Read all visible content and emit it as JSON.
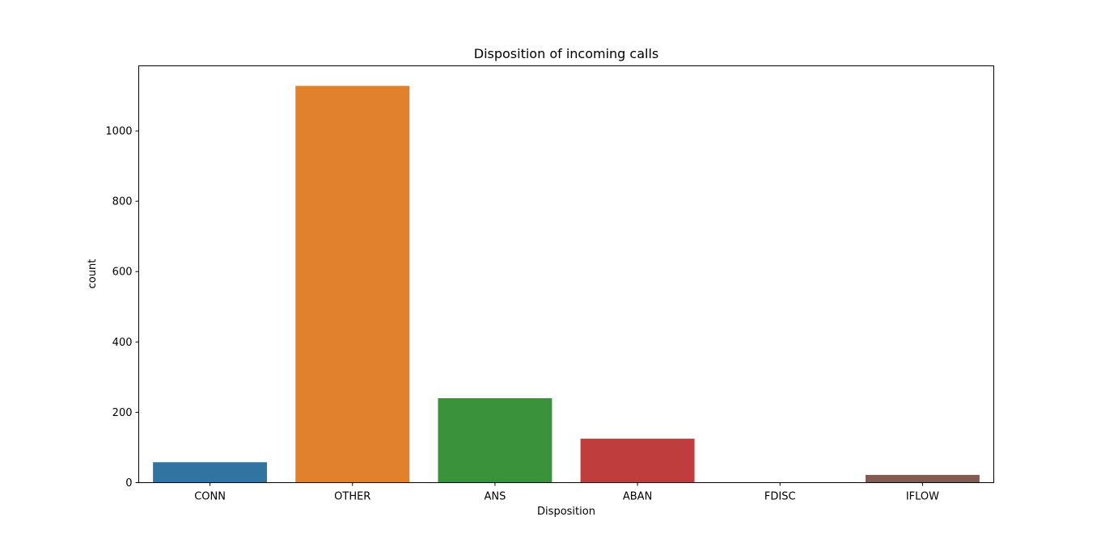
{
  "chart_data": {
    "type": "bar",
    "title": "Disposition of incoming calls",
    "xlabel": "Disposition",
    "ylabel": "count",
    "categories": [
      "CONN",
      "OTHER",
      "ANS",
      "ABAN",
      "FDISC",
      "IFLOW"
    ],
    "values": [
      58,
      1128,
      240,
      125,
      1,
      22
    ],
    "colors": [
      "#3274a1",
      "#e1812c",
      "#3a923a",
      "#c03d3e",
      "#9372b2",
      "#845b53"
    ],
    "ylim": [
      0,
      1185
    ],
    "yticks": [
      0,
      200,
      400,
      600,
      800,
      1000
    ],
    "grid": false,
    "legend": "none"
  }
}
